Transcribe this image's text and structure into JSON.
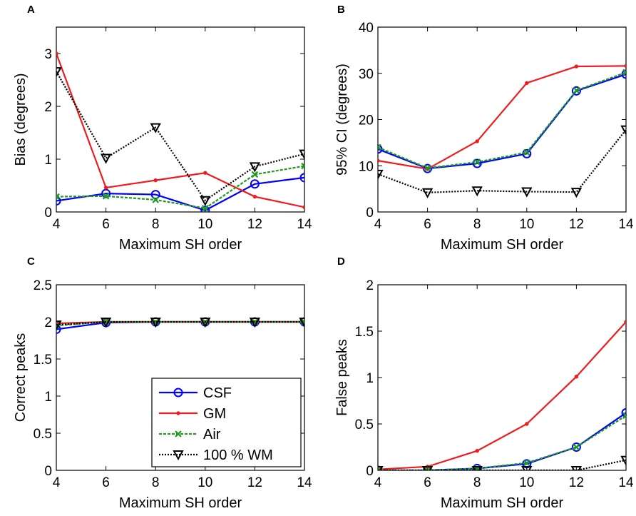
{
  "chart_data": [
    {
      "panel": "A",
      "type": "line",
      "xlabel": "Maximum SH order",
      "ylabel": "Bias (degrees)",
      "x": [
        4,
        6,
        8,
        10,
        12,
        14
      ],
      "xlim": [
        4,
        14
      ],
      "ylim": [
        0,
        3.5
      ],
      "xticks": [
        4,
        6,
        8,
        10,
        12,
        14
      ],
      "yticks": [
        0,
        1,
        2,
        3
      ],
      "ytick_labels": [
        "0",
        "1",
        "2",
        "3"
      ],
      "series": [
        {
          "name": "CSF",
          "values": [
            0.21,
            0.35,
            0.33,
            0.03,
            0.53,
            0.65
          ]
        },
        {
          "name": "GM",
          "values": [
            3.0,
            0.46,
            0.6,
            0.74,
            0.29,
            0.09
          ]
        },
        {
          "name": "Air",
          "values": [
            0.29,
            0.3,
            0.23,
            0.07,
            0.71,
            0.87
          ]
        },
        {
          "name": "100 % WM",
          "values": [
            2.66,
            1.02,
            1.6,
            0.22,
            0.86,
            1.1
          ]
        }
      ]
    },
    {
      "panel": "B",
      "type": "line",
      "xlabel": "Maximum SH order",
      "ylabel": "95% CI (degrees)",
      "x": [
        4,
        6,
        8,
        10,
        12,
        14
      ],
      "xlim": [
        4,
        14
      ],
      "ylim": [
        0,
        40
      ],
      "xticks": [
        4,
        6,
        8,
        10,
        12,
        14
      ],
      "yticks": [
        0,
        10,
        20,
        30,
        40
      ],
      "ytick_labels": [
        "0",
        "10",
        "20",
        "30",
        "40"
      ],
      "series": [
        {
          "name": "CSF",
          "values": [
            13.6,
            9.4,
            10.5,
            12.6,
            26.2,
            29.8
          ]
        },
        {
          "name": "GM",
          "values": [
            11.1,
            9.3,
            15.3,
            27.9,
            31.5,
            31.6
          ]
        },
        {
          "name": "Air",
          "values": [
            14.0,
            9.5,
            10.8,
            12.9,
            26.3,
            30.2
          ]
        },
        {
          "name": "100 % WM",
          "values": [
            8.2,
            4.2,
            4.6,
            4.4,
            4.3,
            17.8
          ]
        }
      ]
    },
    {
      "panel": "C",
      "type": "line",
      "xlabel": "Maximum SH order",
      "ylabel": "Correct peaks",
      "x": [
        4,
        6,
        8,
        10,
        12,
        14
      ],
      "xlim": [
        4,
        14
      ],
      "ylim": [
        0,
        2.5
      ],
      "xticks": [
        4,
        6,
        8,
        10,
        12,
        14
      ],
      "yticks": [
        0,
        0.5,
        1,
        1.5,
        2,
        2.5
      ],
      "ytick_labels": [
        "0",
        "0.5",
        "1",
        "1.5",
        "2",
        "2.5"
      ],
      "legend": {
        "position": "bottom-right",
        "entries": [
          "CSF",
          "GM",
          "Air",
          "100 % WM"
        ]
      },
      "series": [
        {
          "name": "CSF",
          "values": [
            1.9,
            1.99,
            2.0,
            2.0,
            2.0,
            2.0
          ]
        },
        {
          "name": "GM",
          "values": [
            1.98,
            2.0,
            2.0,
            2.0,
            2.0,
            2.0
          ]
        },
        {
          "name": "Air",
          "values": [
            1.95,
            2.0,
            2.0,
            2.0,
            2.0,
            2.0
          ]
        },
        {
          "name": "100 % WM",
          "values": [
            1.96,
            2.0,
            2.0,
            2.0,
            2.0,
            2.0
          ]
        }
      ]
    },
    {
      "panel": "D",
      "type": "line",
      "xlabel": "Maximum SH order",
      "ylabel": "False peaks",
      "x": [
        4,
        6,
        8,
        10,
        12,
        14
      ],
      "xlim": [
        4,
        14
      ],
      "ylim": [
        0,
        2
      ],
      "xticks": [
        4,
        6,
        8,
        10,
        12,
        14
      ],
      "yticks": [
        0,
        0.5,
        1,
        1.5,
        2
      ],
      "ytick_labels": [
        "0",
        "0.5",
        "1",
        "1.5",
        "2"
      ],
      "series": [
        {
          "name": "CSF",
          "values": [
            0.0,
            0.0,
            0.02,
            0.07,
            0.25,
            0.62
          ]
        },
        {
          "name": "GM",
          "values": [
            0.01,
            0.04,
            0.21,
            0.5,
            1.01,
            1.6
          ]
        },
        {
          "name": "Air",
          "values": [
            0.0,
            0.0,
            0.02,
            0.08,
            0.25,
            0.59
          ]
        },
        {
          "name": "100 % WM",
          "values": [
            0.0,
            0.0,
            0.0,
            0.0,
            0.0,
            0.11
          ]
        }
      ]
    }
  ],
  "series_styles": {
    "CSF": {
      "color": "#0000ff",
      "marker": "circle",
      "dash": "solid"
    },
    "GM": {
      "color": "#ee1c1c",
      "marker": "dot",
      "dash": "solid"
    },
    "Air": {
      "color": "#1f9a1f",
      "marker": "x",
      "dash": "dashed"
    },
    "100 % WM": {
      "color": "#000000",
      "marker": "triangle-down",
      "dash": "dotted"
    }
  }
}
